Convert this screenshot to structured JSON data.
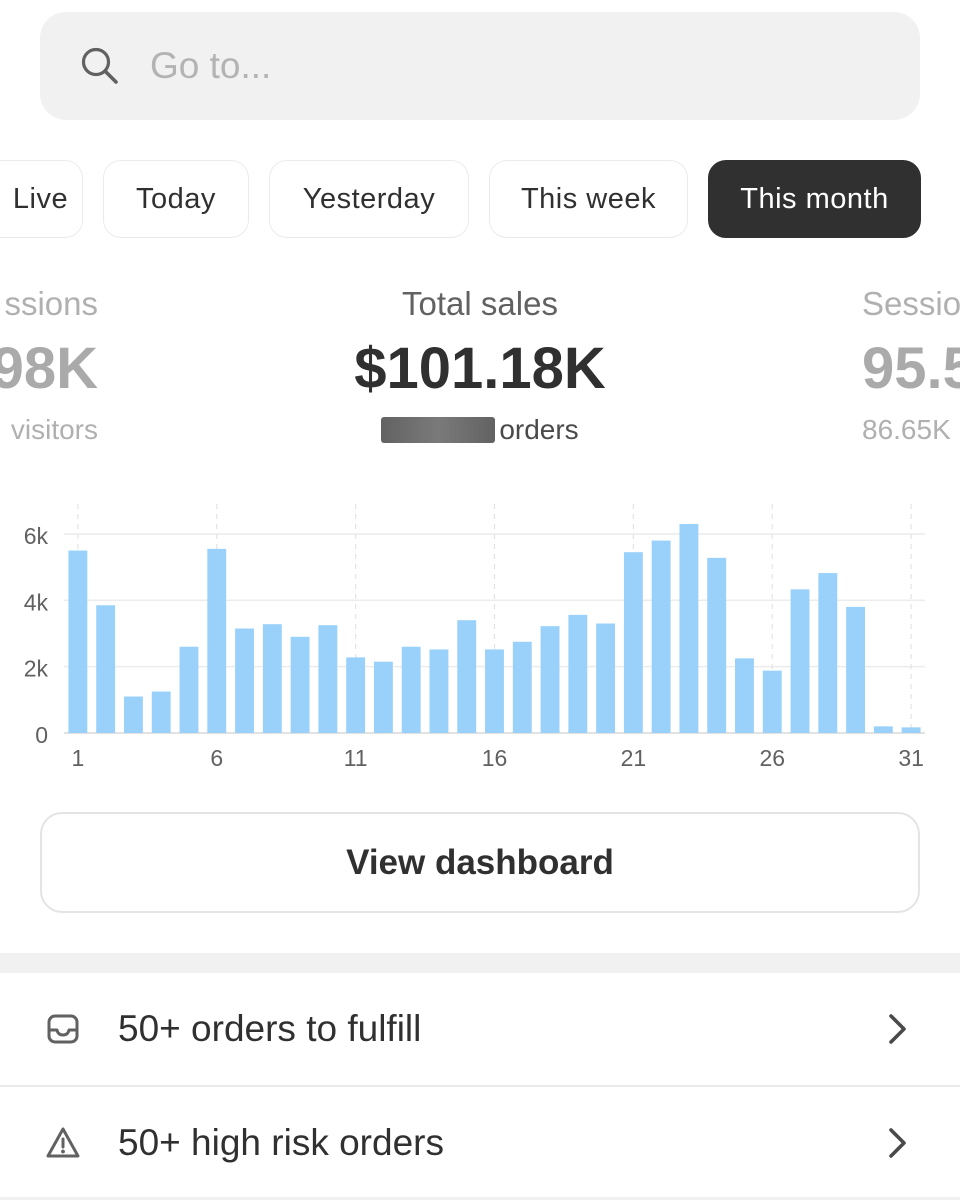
{
  "search": {
    "placeholder": "Go to...",
    "value": ""
  },
  "filters": [
    {
      "label": "Live",
      "active": false
    },
    {
      "label": "Today",
      "active": false
    },
    {
      "label": "Yesterday",
      "active": false
    },
    {
      "label": "This week",
      "active": false
    },
    {
      "label": "This month",
      "active": true
    }
  ],
  "metrics": {
    "left": {
      "label": "ssions",
      "value": "98K",
      "sub": "visitors"
    },
    "main": {
      "label": "Total sales",
      "value": "$101.18K",
      "sub": "orders"
    },
    "right": {
      "label": "Sessio",
      "value": "95.5",
      "sub": "86.65K"
    }
  },
  "chart_data": {
    "type": "bar",
    "categories": [
      1,
      2,
      3,
      4,
      5,
      6,
      7,
      8,
      9,
      10,
      11,
      12,
      13,
      14,
      15,
      16,
      17,
      18,
      19,
      20,
      21,
      22,
      23,
      24,
      25,
      26,
      27,
      28,
      29,
      30,
      31
    ],
    "values": [
      5500,
      3850,
      1100,
      1250,
      2600,
      5550,
      3150,
      3280,
      2900,
      3250,
      2280,
      2150,
      2600,
      2520,
      3400,
      2520,
      2750,
      3220,
      3560,
      3300,
      5450,
      5800,
      6300,
      5280,
      2250,
      1880,
      4330,
      4820,
      3800,
      200,
      170
    ],
    "x_tick_labels": [
      "1",
      "6",
      "11",
      "16",
      "21",
      "26",
      "31"
    ],
    "y_tick_labels": [
      "0",
      "2k",
      "4k",
      "6k"
    ],
    "ylim": [
      0,
      6300
    ],
    "bar_color": "#99d1fb",
    "grid": true
  },
  "dashboard_button": {
    "label": "View dashboard"
  },
  "tasks": [
    {
      "label": "50+ orders to fulfill",
      "icon": "inbox-icon"
    },
    {
      "label": "50+ high risk orders",
      "icon": "warning-icon"
    }
  ]
}
